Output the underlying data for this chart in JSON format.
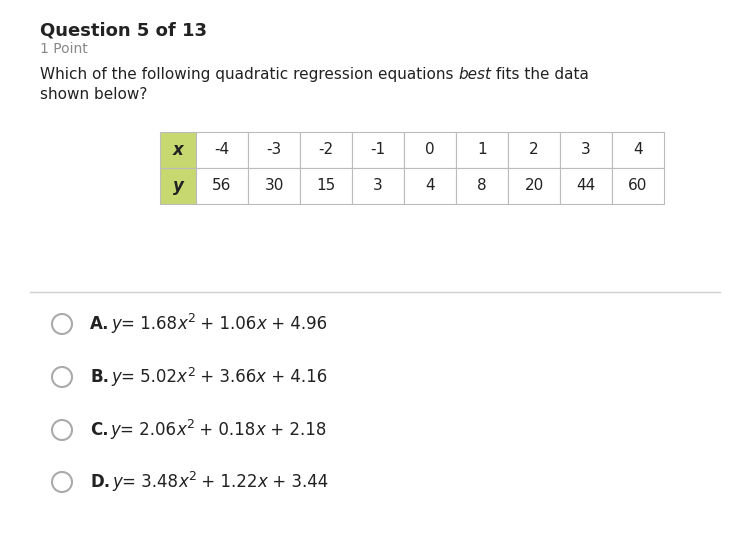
{
  "background_color": "#ffffff",
  "title_bold": "Question 5 of 13",
  "subtitle": "1 Point",
  "header_bg_color": "#c8d870",
  "table_bg_color": "#ffffff",
  "table_border_color": "#bbbbbb",
  "header_label_x": "x",
  "header_label_y": "y",
  "table_x_values": [
    "-4",
    "-3",
    "-2",
    "-1",
    "0",
    "1",
    "2",
    "3",
    "4"
  ],
  "table_y_values": [
    "56",
    "30",
    "15",
    "3",
    "4",
    "8",
    "20",
    "44",
    "60"
  ],
  "options": [
    {
      "label": "A.",
      "parts": [
        {
          "text": "y",
          "style": "italic"
        },
        {
          "text": "= 1.68",
          "style": "normal"
        },
        {
          "text": "x",
          "style": "italic"
        },
        {
          "text": "2",
          "style": "super"
        },
        {
          "text": " + 1.06",
          "style": "normal"
        },
        {
          "text": "x",
          "style": "italic"
        },
        {
          "text": " + 4.96",
          "style": "normal"
        }
      ]
    },
    {
      "label": "B.",
      "parts": [
        {
          "text": "y",
          "style": "italic"
        },
        {
          "text": "= 5.02",
          "style": "normal"
        },
        {
          "text": "x",
          "style": "italic"
        },
        {
          "text": "2",
          "style": "super"
        },
        {
          "text": " + 3.66",
          "style": "normal"
        },
        {
          "text": "x",
          "style": "italic"
        },
        {
          "text": " + 4.16",
          "style": "normal"
        }
      ]
    },
    {
      "label": "C.",
      "parts": [
        {
          "text": "y",
          "style": "italic"
        },
        {
          "text": "= 2.06",
          "style": "normal"
        },
        {
          "text": "x",
          "style": "italic"
        },
        {
          "text": "2",
          "style": "super"
        },
        {
          "text": " + 0.18",
          "style": "normal"
        },
        {
          "text": "x",
          "style": "italic"
        },
        {
          "text": " + 2.18",
          "style": "normal"
        }
      ]
    },
    {
      "label": "D.",
      "parts": [
        {
          "text": "y",
          "style": "italic"
        },
        {
          "text": "= 3.48",
          "style": "normal"
        },
        {
          "text": "x",
          "style": "italic"
        },
        {
          "text": "2",
          "style": "super"
        },
        {
          "text": " + 1.22",
          "style": "normal"
        },
        {
          "text": "x",
          "style": "italic"
        },
        {
          "text": " + 3.44",
          "style": "normal"
        }
      ]
    }
  ],
  "divider_color": "#d0d0d0",
  "font_size_title": 13,
  "font_size_subtitle": 10,
  "font_size_body": 11,
  "font_size_table": 11,
  "font_size_options": 12,
  "font_size_super": 9,
  "text_color": "#222222",
  "subtitle_color": "#888888",
  "circle_color": "#aaaaaa"
}
